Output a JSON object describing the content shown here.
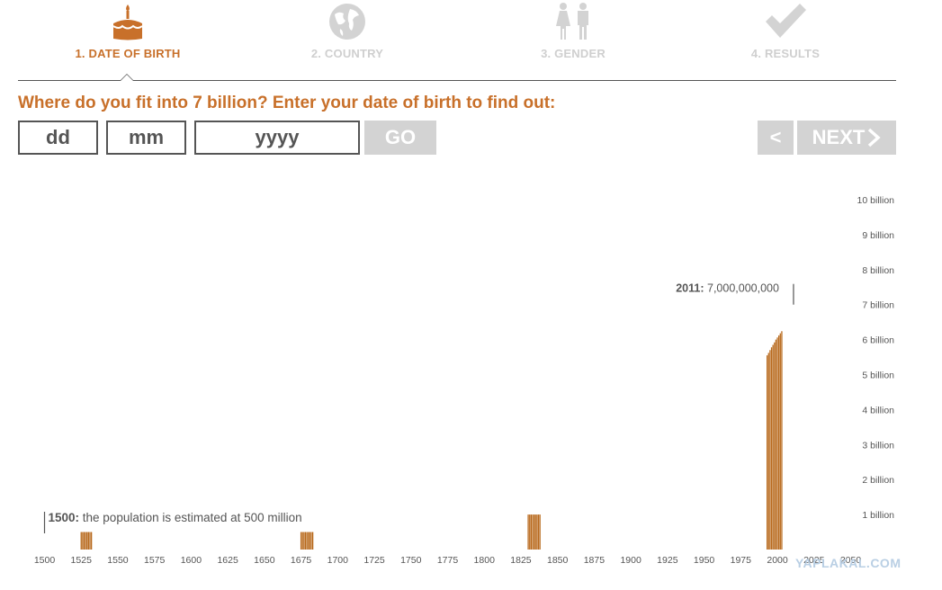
{
  "steps": [
    {
      "number_label": "1. DATE OF BIRTH",
      "icon": "birthday-cake-icon",
      "active": true
    },
    {
      "number_label": "2. COUNTRY",
      "icon": "globe-icon",
      "active": false
    },
    {
      "number_label": "3. GENDER",
      "icon": "male-female-icon",
      "active": false
    },
    {
      "number_label": "4. RESULTS",
      "icon": "checkmark-icon",
      "active": false
    }
  ],
  "form": {
    "question": "Where do you fit into 7 billion? Enter your date of birth to find out:",
    "day_placeholder": "dd",
    "month_placeholder": "mm",
    "year_placeholder": "yyyy",
    "go_label": "GO"
  },
  "nav": {
    "prev_label": "<",
    "next_label": "NEXT"
  },
  "colors": {
    "accent": "#c8702a",
    "bar": "#b8691c",
    "inactive": "#cfcfcf",
    "button": "#d3d3d3",
    "text": "#555555"
  },
  "chart_data": {
    "type": "bar",
    "xlim": [
      1500,
      2050
    ],
    "x_ticks": [
      1500,
      1525,
      1550,
      1575,
      1600,
      1625,
      1650,
      1675,
      1700,
      1725,
      1750,
      1775,
      1800,
      1825,
      1850,
      1875,
      1900,
      1925,
      1950,
      1975,
      2000,
      2025,
      2050
    ],
    "ylim": [
      0,
      10
    ],
    "y_ticks": [
      "1 billion",
      "2 billion",
      "3 billion",
      "4 billion",
      "5 billion",
      "6 billion",
      "7 billion",
      "8 billion",
      "9 billion",
      "10 billion"
    ],
    "y_unit": "billion",
    "series": [
      {
        "x": [
          1525,
          1526,
          1527,
          1528,
          1529,
          1530,
          1531,
          1532
        ],
        "values": [
          0.5,
          0.5,
          0.5,
          0.5,
          0.5,
          0.5,
          0.5,
          0.5
        ]
      },
      {
        "x": [
          1675,
          1676,
          1677,
          1678,
          1679,
          1680,
          1681,
          1682,
          1683
        ],
        "values": [
          0.5,
          0.5,
          0.5,
          0.5,
          0.5,
          0.5,
          0.5,
          0.5,
          0.5
        ]
      },
      {
        "x": [
          1830,
          1831,
          1832,
          1833,
          1834,
          1835,
          1836,
          1837,
          1838
        ],
        "values": [
          1.0,
          1.0,
          1.0,
          1.0,
          1.0,
          1.0,
          1.0,
          1.0,
          1.0
        ]
      },
      {
        "x": [
          1993,
          1994,
          1995,
          1996,
          1997,
          1998,
          1999,
          2000,
          2001,
          2002,
          2003
        ],
        "values": [
          5.55,
          5.62,
          5.7,
          5.78,
          5.85,
          5.92,
          6.0,
          6.06,
          6.12,
          6.18,
          6.24
        ]
      }
    ],
    "annotations": [
      {
        "x": 1500,
        "year_label": "1500:",
        "text": "the population is estimated at 500 million"
      },
      {
        "x": 2011,
        "y": 7.0,
        "year_label": "2011:",
        "text": "7,000,000,000"
      }
    ]
  },
  "watermark": "YAPLAKAL.COM"
}
